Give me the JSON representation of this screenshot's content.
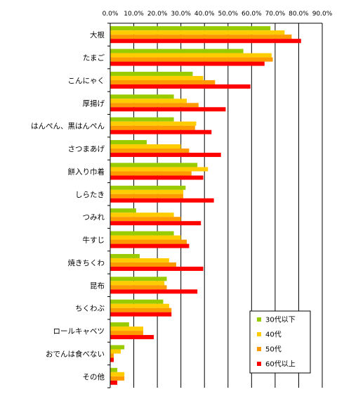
{
  "chart_data": {
    "type": "bar",
    "orientation": "horizontal",
    "title": "",
    "xlabel": "",
    "ylabel": "",
    "xlim": [
      0,
      90
    ],
    "grid": true,
    "legend_position": "bottom-right",
    "ticks": [
      "0.0%",
      "10.0%",
      "20.0%",
      "30.0%",
      "40.0%",
      "50.0%",
      "60.0%",
      "70.0%",
      "80.0%",
      "90.0%"
    ],
    "categories": [
      "大根",
      "たまご",
      "こんにゃく",
      "厚揚げ",
      "はんぺん、黒はんぺん",
      "さつまあげ",
      "餅入り巾着",
      "しらたき",
      "つみれ",
      "牛すじ",
      "焼きちくわ",
      "昆布",
      "ちくわぶ",
      "ロールキャベツ",
      "おでんは食べない",
      "その他"
    ],
    "series": [
      {
        "name": "30代以下",
        "color": "#99cc00",
        "values": [
          68.0,
          56.5,
          35.0,
          27.0,
          27.0,
          15.5,
          37.0,
          32.0,
          11.0,
          27.0,
          12.5,
          24.0,
          22.5,
          8.0,
          6.0,
          3.0
        ]
      },
      {
        "name": "40代",
        "color": "#ffcc00",
        "values": [
          74.0,
          68.5,
          39.5,
          32.5,
          36.5,
          30.0,
          41.5,
          31.0,
          27.0,
          30.0,
          25.0,
          23.0,
          25.0,
          14.0,
          4.5,
          6.0
        ]
      },
      {
        "name": "50代",
        "color": "#ff9900",
        "values": [
          77.0,
          69.0,
          44.5,
          37.5,
          36.0,
          33.5,
          34.5,
          31.0,
          30.0,
          32.5,
          28.0,
          24.0,
          26.0,
          14.0,
          1.5,
          6.0
        ]
      },
      {
        "name": "60代以上",
        "color": "#ff0000",
        "values": [
          81.0,
          65.5,
          59.5,
          49.0,
          43.0,
          47.0,
          39.5,
          44.0,
          38.5,
          33.5,
          39.5,
          37.0,
          26.0,
          18.5,
          1.5,
          3.0
        ]
      }
    ]
  }
}
